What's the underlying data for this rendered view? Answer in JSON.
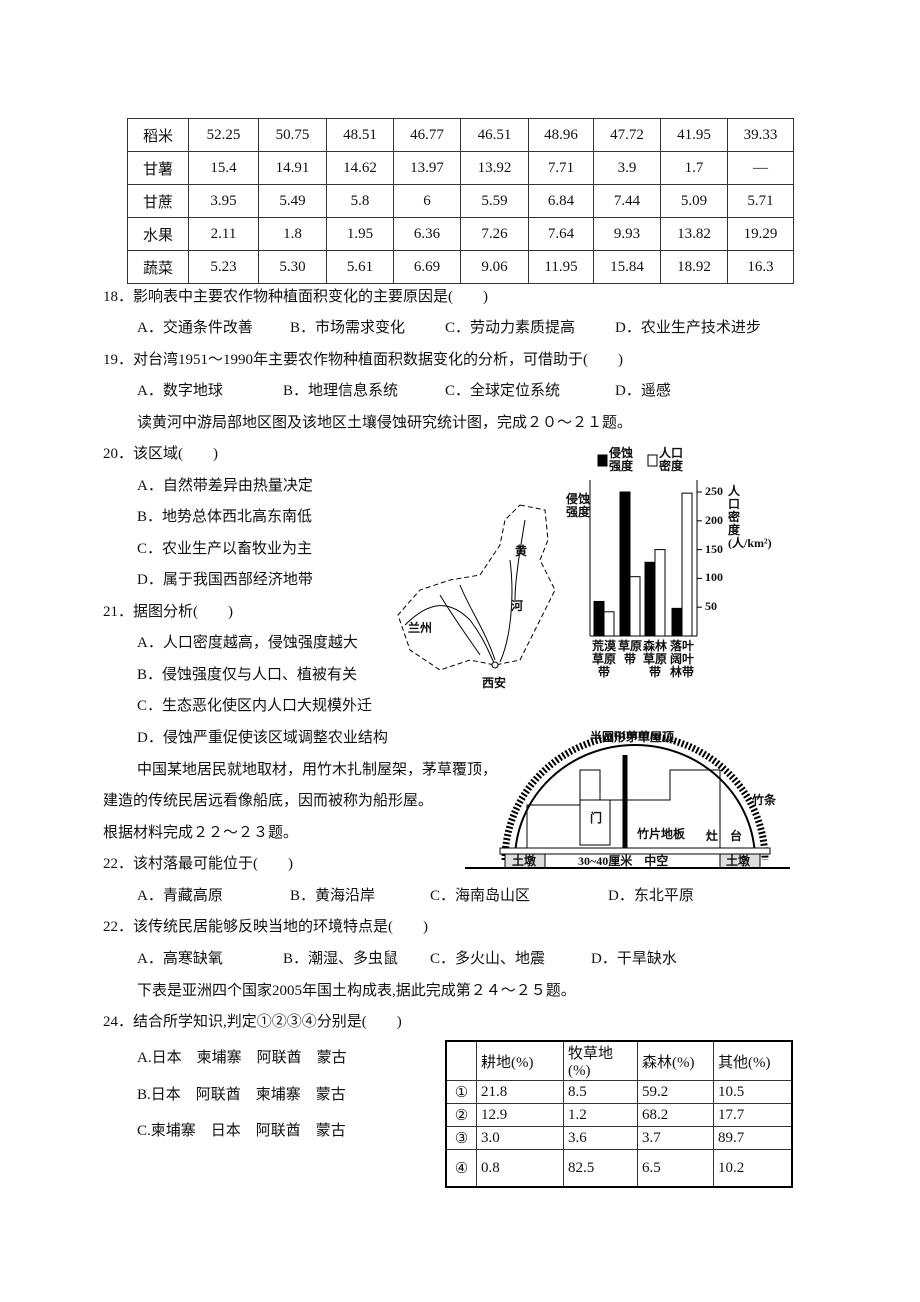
{
  "table1": {
    "rows": [
      [
        "稻米",
        "52.25",
        "50.75",
        "48.51",
        "46.77",
        "46.51",
        "48.96",
        "47.72",
        "41.95",
        "39.33"
      ],
      [
        "甘薯",
        "15.4",
        "14.91",
        "14.62",
        "13.97",
        "13.92",
        "7.71",
        "3.9",
        "1.7",
        "—"
      ],
      [
        "甘蔗",
        "3.95",
        "5.49",
        "5.8",
        "6",
        "5.59",
        "6.84",
        "7.44",
        "5.09",
        "5.71"
      ],
      [
        "水果",
        "2.11",
        "1.8",
        "1.95",
        "6.36",
        "7.26",
        "7.64",
        "9.93",
        "13.82",
        "19.29"
      ],
      [
        "蔬菜",
        "5.23",
        "5.30",
        "5.61",
        "6.69",
        "9.06",
        "11.95",
        "15.84",
        "18.92",
        "16.3"
      ]
    ]
  },
  "q18": {
    "stem": "18．影响表中主要农作物种植面积变化的主要原因是(　　)",
    "options": [
      "A．交通条件改善",
      "B．市场需求变化",
      "C．劳动力素质提高",
      "D．农业生产技术进步"
    ]
  },
  "q19": {
    "stem": "19．对台湾1951～1990年主要农作物种植面积数据变化的分析，可借助于(　　)",
    "options": [
      "A．数字地球",
      "B．地理信息系统",
      "C．全球定位系统",
      "D．遥感"
    ]
  },
  "intro20": "读黄河中游局部地区图及该地区土壤侵蚀研究统计图，完成２０～２１题。",
  "q20": {
    "stem": "20．该区域(　　)",
    "options": [
      "A．自然带差异由热量决定",
      "B．地势总体西北高东南低",
      "C．农业生产以畜牧业为主",
      "D．属于我国西部经济地带"
    ]
  },
  "q21": {
    "stem": "21．据图分析(　　)",
    "options": [
      "A．人口密度越高，侵蚀强度越大",
      "B．侵蚀强度仅与人口、植被有关",
      "C．生态恶化使区内人口大规模外迁",
      "D．侵蚀严重促使该区域调整农业结构"
    ]
  },
  "map": {
    "labels": [
      "黄",
      "河",
      "兰州",
      "西安"
    ]
  },
  "chart_data": {
    "type": "bar",
    "y_label": "侵蚀强度",
    "y2_label": "人口密度(人/km²)",
    "categories": [
      "荒漠草原带",
      "草原带",
      "森林草原带",
      "落叶阔叶林带"
    ],
    "series": [
      {
        "name": "侵蚀强度",
        "color": "#000000",
        "values": [
          60,
          250,
          128,
          48
        ]
      },
      {
        "name": "人口密度",
        "color": "#ffffff",
        "axis": "y2",
        "values": [
          42,
          103,
          150,
          248
        ]
      }
    ],
    "ylim": [
      0,
      250
    ],
    "y2lim": [
      0,
      250
    ],
    "y2ticks": [
      50,
      100,
      150,
      200,
      250
    ]
  },
  "intro22": [
    "中国某地居民就地取材，用竹木扎制屋架，茅草覆顶，",
    "建造的传统民居远看像船底，因而被称为船形屋。",
    "根据材料完成２２～２３题。"
  ],
  "house": {
    "labels": [
      "半圆形茅草屋顶",
      "竹条",
      "门",
      "竹片地板",
      "灶",
      "台",
      "土墩",
      "30~40厘米　中空",
      "土墩"
    ]
  },
  "q22": {
    "stem": "22．该村落最可能位于(　　)",
    "options": [
      "A．青藏高原",
      "B．黄海沿岸",
      "C．海南岛山区",
      "D．东北平原"
    ]
  },
  "q23": {
    "stem": "22．该传统民居能够反映当地的环境特点是(　　)",
    "options": [
      "A．高寒缺氧",
      "B．潮湿、多虫鼠",
      "C．多火山、地震",
      "D．干旱缺水"
    ]
  },
  "intro24": "下表是亚洲四个国家2005年国土构成表,据此完成第２４～２５题。",
  "q24": {
    "stem": "24．结合所学知识,判定①②③④分别是(　　)",
    "options": [
      "A.日本　柬埔寨　阿联酋　蒙古",
      "B.日本　阿联酋　柬埔寨　蒙古",
      "C.柬埔寨　日本　阿联酋　蒙古"
    ]
  },
  "table2": {
    "header": [
      "",
      "耕地(%)",
      "牧草地(%)",
      "森林(%)",
      "其他(%)"
    ],
    "rows": [
      [
        "①",
        "21.8",
        "8.5",
        "59.2",
        "10.5"
      ],
      [
        "②",
        "12.9",
        "1.2",
        "68.2",
        "17.7"
      ],
      [
        "③",
        "3.0",
        "3.6",
        "3.7",
        "89.7"
      ],
      [
        "④",
        "0.8",
        "82.5",
        "6.5",
        "10.2"
      ]
    ]
  }
}
